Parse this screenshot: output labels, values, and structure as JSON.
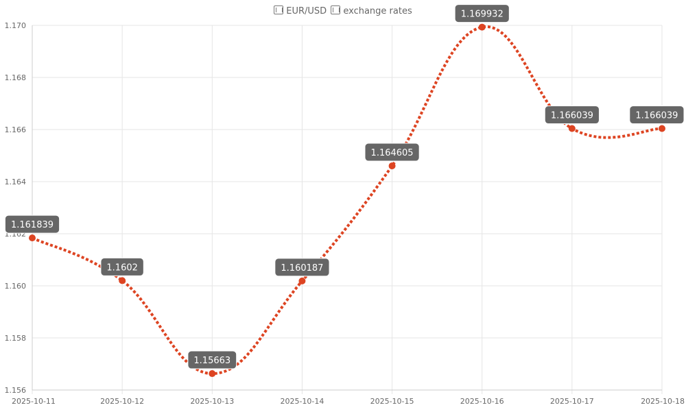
{
  "chart_data": {
    "type": "line",
    "title_pair": "EUR/USD",
    "title_suffix": "exchange rates",
    "icons": [
      "eu-flag-icon",
      "us-flag-icon"
    ],
    "x": [
      "2025-10-11",
      "2025-10-12",
      "2025-10-13",
      "2025-10-14",
      "2025-10-15",
      "2025-10-16",
      "2025-10-17",
      "2025-10-18"
    ],
    "series": [
      {
        "values": [
          1.161839,
          1.1602,
          1.15663,
          1.160187,
          1.164605,
          1.169932,
          1.166039,
          1.166039
        ],
        "labels": [
          "1.161839",
          "1.1602",
          "1.15663",
          "1.160187",
          "1.164605",
          "1.169932",
          "1.166039",
          "1.166039"
        ],
        "color": "#dd4422",
        "line_style": "dotted",
        "smooth": true
      }
    ],
    "ylim": [
      1.156,
      1.17
    ],
    "yticks": [
      "1.156",
      "1.158",
      "1.160",
      "1.162",
      "1.164",
      "1.166",
      "1.168",
      "1.170"
    ],
    "grid": true,
    "colors": {
      "line": "#dd4422",
      "label_bg": "#666666",
      "label_text": "#ffffff",
      "grid": "#e5e5e5",
      "axis_text": "#666666"
    }
  }
}
